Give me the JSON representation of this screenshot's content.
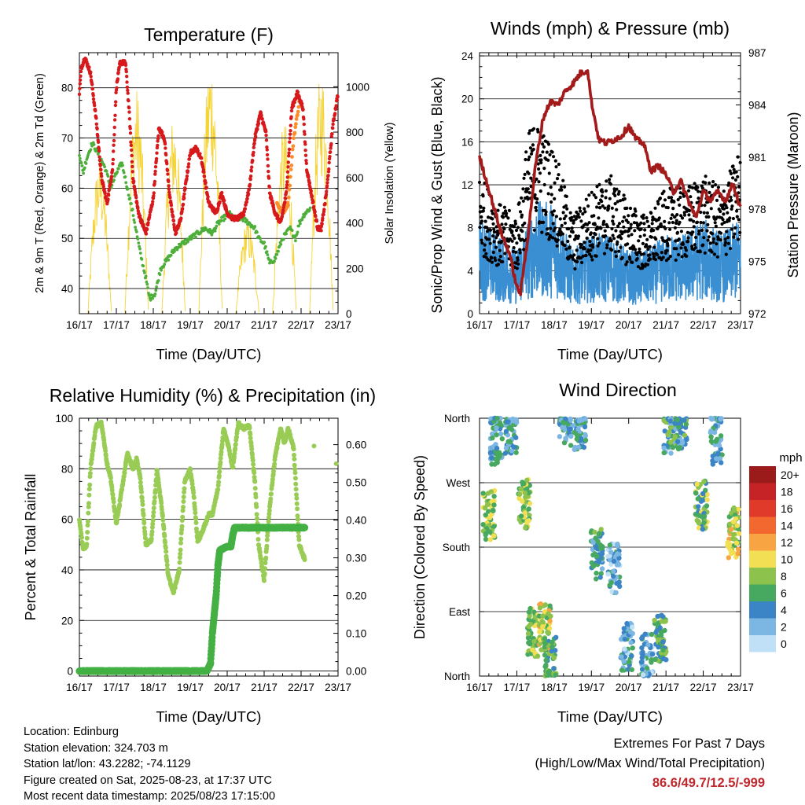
{
  "days": [
    "16/17",
    "17/17",
    "18/17",
    "19/17",
    "20/17",
    "21/17",
    "22/17",
    "23/17"
  ],
  "colors": {
    "temp2m": "#d7191c",
    "temp9m": "#fc8d2a",
    "dewpoint": "#4daf3a",
    "solar": "#f5d43a",
    "wind": "#3a8fd3",
    "gust": "#000000",
    "pressure": "#a31a1a",
    "rh": "#99cc55",
    "precip": "#44b044"
  },
  "info": {
    "location": "Location: Edinburg",
    "elevation": "Station elevation: 324.703 m",
    "latlon": "Station lat/lon: 43.2282; -74.1129",
    "created": "Figure created on Sat, 2025-08-23, at 17:37 UTC",
    "recent": "Most recent data timestamp: 2025/08/23 17:15:00"
  },
  "extremes": {
    "title": "Extremes For Past 7 Days",
    "subtitle": "(High/Low/Max Wind/Total Precipitation)",
    "value": "86.6/49.7/12.5/-999"
  },
  "chart_data": [
    {
      "type": "line",
      "title": "Temperature (F)",
      "xlabel": "Time (Day/UTC)",
      "ylabel": "2m & 9m T (Red, Orange) & 2m Td (Green)",
      "y2label": "Solar Insolation (Yellow)",
      "ylim": [
        35,
        87
      ],
      "y2lim": [
        0,
        1150
      ],
      "yticks": [
        40,
        50,
        60,
        70,
        80
      ],
      "y2ticks": [
        0,
        200,
        400,
        600,
        800,
        1000
      ],
      "grid": true,
      "series": [
        {
          "name": "2m T",
          "color": "#d7191c",
          "x": [
            0,
            0.05,
            0.15,
            0.3,
            0.45,
            0.6,
            0.75,
            0.9,
            1.0,
            1.1,
            1.25,
            1.35,
            1.45,
            1.6,
            1.8,
            2.0,
            2.15,
            2.3,
            2.45,
            2.6,
            2.75,
            2.9,
            3.0,
            3.15,
            3.3,
            3.5,
            3.7,
            3.85,
            4.0,
            4.15,
            4.3,
            4.45,
            4.6,
            4.75,
            4.9,
            5.05,
            5.15,
            5.3,
            5.45,
            5.6,
            5.75,
            5.9,
            6.05,
            6.15,
            6.25,
            6.35,
            6.45,
            6.55,
            6.7,
            6.85,
            7.0
          ],
          "values": [
            79,
            84,
            86,
            83,
            74,
            62,
            57,
            64,
            80,
            85,
            85,
            75,
            62,
            55,
            51,
            58,
            72,
            70,
            58,
            51,
            54,
            62,
            67,
            68,
            66,
            57,
            55,
            59,
            55,
            54,
            54,
            55,
            60,
            70,
            75,
            71,
            59,
            55,
            53,
            59,
            76,
            79,
            76,
            64,
            60,
            56,
            52,
            52,
            60,
            72,
            79
          ]
        },
        {
          "name": "9m T",
          "color": "#fc8d2a",
          "x": [
            5.35,
            5.5,
            5.65,
            5.8,
            5.95
          ],
          "values": [
            57,
            55,
            57,
            70,
            77
          ]
        },
        {
          "name": "2m Td",
          "color": "#4daf3a",
          "x": [
            0,
            0.1,
            0.2,
            0.35,
            0.5,
            0.7,
            0.85,
            1.0,
            1.15,
            1.3,
            1.45,
            1.65,
            1.8,
            1.9,
            2.05,
            2.2,
            2.4,
            2.6,
            2.8,
            3.0,
            3.2,
            3.4,
            3.6,
            3.75,
            3.9,
            4.05,
            4.2,
            4.4,
            4.6,
            4.75,
            4.85,
            5.0,
            5.15,
            5.3,
            5.5,
            5.7,
            5.85,
            5.95,
            6.1,
            6.25
          ],
          "values": [
            67,
            63,
            66,
            69,
            67,
            64,
            60,
            63,
            65,
            60,
            55,
            47,
            42,
            38,
            39,
            44,
            46,
            48,
            49,
            50,
            51,
            52,
            51,
            53,
            54,
            55,
            54,
            54,
            53,
            52,
            50,
            49,
            45,
            46,
            50,
            52,
            50,
            53,
            55,
            56
          ]
        }
      ],
      "solar": {
        "name": "Solar Insolation",
        "color": "#f5d43a",
        "days": [
          0,
          1,
          2,
          3,
          4,
          5,
          6
        ],
        "noon_offset": 0.55,
        "peaks": [
          700,
          1000,
          880,
          1150,
          420,
          850,
          1080
        ]
      }
    },
    {
      "type": "scatter",
      "title": "Winds (mph) & Pressure (mb)",
      "xlabel": "Time (Day/UTC)",
      "ylabel": "Sonic/Prop Wind & Gust (Blue, Black)",
      "y2label": "Station Pressure (Maroon)",
      "ylim": [
        0,
        24.3
      ],
      "y2lim": [
        972,
        987
      ],
      "yticks": [
        0,
        4,
        8,
        12,
        16,
        20,
        24
      ],
      "y2ticks": [
        972,
        975,
        978,
        981,
        984,
        987
      ],
      "grid": true,
      "wind_envelope": {
        "x": [
          0,
          0.5,
          1.0,
          1.3,
          1.5,
          2.0,
          2.5,
          3.0,
          3.5,
          4.0,
          4.5,
          5.0,
          5.5,
          6.0,
          6.5,
          7.0
        ],
        "values": [
          6,
          5,
          4,
          6,
          7,
          7,
          4,
          5,
          5,
          4,
          4,
          5,
          5,
          6,
          5,
          6
        ]
      },
      "gust_envelope": {
        "x": [
          0,
          0.5,
          1.0,
          1.3,
          1.5,
          2.0,
          2.5,
          3.0,
          3.5,
          4.0,
          4.5,
          5.0,
          5.5,
          6.0,
          6.5,
          7.0
        ],
        "values": [
          10,
          8,
          7,
          13,
          14,
          12,
          7,
          9,
          10,
          8,
          7,
          9,
          9,
          10,
          9,
          12
        ]
      },
      "series": [
        {
          "name": "Station Pressure",
          "color": "#a31a1a",
          "x": [
            0,
            0.2,
            0.4,
            0.6,
            0.8,
            1.0,
            1.1,
            1.3,
            1.5,
            1.7,
            1.9,
            2.1,
            2.3,
            2.5,
            2.7,
            2.9,
            3.0,
            3.2,
            3.4,
            3.6,
            3.8,
            4.0,
            4.2,
            4.4,
            4.6,
            4.8,
            5.0,
            5.2,
            5.4,
            5.6,
            5.8,
            6.0,
            6.2,
            6.4,
            6.6,
            6.8,
            7.0
          ],
          "values": [
            981,
            979.5,
            978,
            976.5,
            975.5,
            973.5,
            973.2,
            976.5,
            980.5,
            983.2,
            984.2,
            984,
            984.8,
            985.2,
            985.8,
            986,
            984.2,
            982,
            981.8,
            982,
            982.2,
            982.8,
            982,
            981.8,
            980.2,
            980.5,
            980,
            979,
            979.6,
            978.5,
            977.5,
            979,
            978.5,
            979,
            978.5,
            979.5,
            978
          ]
        }
      ]
    },
    {
      "type": "line",
      "title": "Relative Humidity (%) & Precipitation (in)",
      "xlabel": "Time (Day/UTC)",
      "ylabel": "Percent & Total Rainfall",
      "ylim": [
        -2,
        100
      ],
      "y2lim": [
        -0.0134,
        0.67
      ],
      "yticks": [
        0,
        20,
        40,
        60,
        80,
        100
      ],
      "y2ticks": [
        0.0,
        0.1,
        0.2,
        0.3,
        0.4,
        0.5,
        0.6
      ],
      "grid": true,
      "series": [
        {
          "name": "Relative Humidity",
          "color": "#99cc55",
          "x": [
            0,
            0.1,
            0.2,
            0.3,
            0.45,
            0.6,
            0.75,
            0.85,
            1.0,
            1.15,
            1.3,
            1.45,
            1.55,
            1.65,
            1.8,
            1.95,
            2.1,
            2.25,
            2.4,
            2.55,
            2.7,
            2.85,
            3.0,
            3.1,
            3.2,
            3.35,
            3.5,
            3.6,
            3.75,
            3.9,
            4.05,
            4.15,
            4.3,
            4.45,
            4.6,
            4.75,
            4.85,
            5.0,
            5.15,
            5.3,
            5.45,
            5.55,
            5.65,
            5.8,
            5.95,
            6.1
          ],
          "values": [
            60,
            48,
            50,
            80,
            97,
            98,
            82,
            76,
            58,
            72,
            86,
            80,
            84,
            76,
            50,
            52,
            80,
            62,
            38,
            31,
            40,
            75,
            80,
            69,
            51,
            56,
            62,
            62,
            72,
            96,
            88,
            80,
            98,
            96,
            97,
            75,
            50,
            36,
            65,
            85,
            96,
            90,
            96,
            88,
            50,
            44
          ]
        },
        {
          "name": "Total Precipitation",
          "color": "#44b044",
          "x": [
            0,
            3.45,
            3.5,
            3.55,
            3.6,
            3.7,
            3.75,
            3.8,
            4.0,
            4.1,
            4.15,
            4.2,
            4.3,
            4.5,
            5.0,
            6.1
          ],
          "values": [
            0,
            0,
            0.01,
            0.02,
            0.1,
            0.2,
            0.28,
            0.32,
            0.33,
            0.33,
            0.36,
            0.38,
            0.38,
            0.38,
            0.38,
            0.38
          ]
        },
        {
          "name": "Relative Humidity (later)",
          "color": "#99cc55",
          "x": [
            6.35,
            6.95
          ],
          "values": [
            89,
            82
          ]
        }
      ]
    },
    {
      "type": "scatter",
      "title": "Wind Direction",
      "xlabel": "Time (Day/UTC)",
      "ylabel": "Direction (Colored By Speed)",
      "ylim": [
        0,
        360
      ],
      "ytick_labels": [
        "North",
        "East",
        "South",
        "West",
        "North"
      ],
      "grid": true,
      "clusters": [
        {
          "x": 0.25,
          "y": 225,
          "speed": 8
        },
        {
          "x": 0.45,
          "y": 330,
          "speed": 4
        },
        {
          "x": 0.85,
          "y": 345,
          "speed": 4
        },
        {
          "x": 1.2,
          "y": 240,
          "speed": 8
        },
        {
          "x": 1.45,
          "y": 60,
          "speed": 8
        },
        {
          "x": 1.75,
          "y": 70,
          "speed": 9
        },
        {
          "x": 1.9,
          "y": 20,
          "speed": 6
        },
        {
          "x": 2.3,
          "y": 355,
          "speed": 4
        },
        {
          "x": 2.7,
          "y": 350,
          "speed": 4
        },
        {
          "x": 3.15,
          "y": 170,
          "speed": 5
        },
        {
          "x": 3.6,
          "y": 150,
          "speed": 3
        },
        {
          "x": 3.95,
          "y": 40,
          "speed": 3
        },
        {
          "x": 4.5,
          "y": 25,
          "speed": 3
        },
        {
          "x": 4.85,
          "y": 50,
          "speed": 6
        },
        {
          "x": 5.1,
          "y": 345,
          "speed": 5
        },
        {
          "x": 5.4,
          "y": 350,
          "speed": 5
        },
        {
          "x": 5.95,
          "y": 240,
          "speed": 7
        },
        {
          "x": 6.35,
          "y": 330,
          "speed": 4
        },
        {
          "x": 6.8,
          "y": 200,
          "speed": 9
        }
      ],
      "legend": {
        "title": "mph",
        "labels": [
          "20+",
          "18",
          "16",
          "14",
          "12",
          "10",
          "8",
          "6",
          "4",
          "2",
          "0"
        ],
        "colors": [
          "#9b1b1b",
          "#c62327",
          "#e03a2b",
          "#f2682e",
          "#f9a442",
          "#f2df54",
          "#8dc34d",
          "#47a95f",
          "#3b84c5",
          "#7cb6e2",
          "#bfe0f7"
        ]
      }
    }
  ]
}
